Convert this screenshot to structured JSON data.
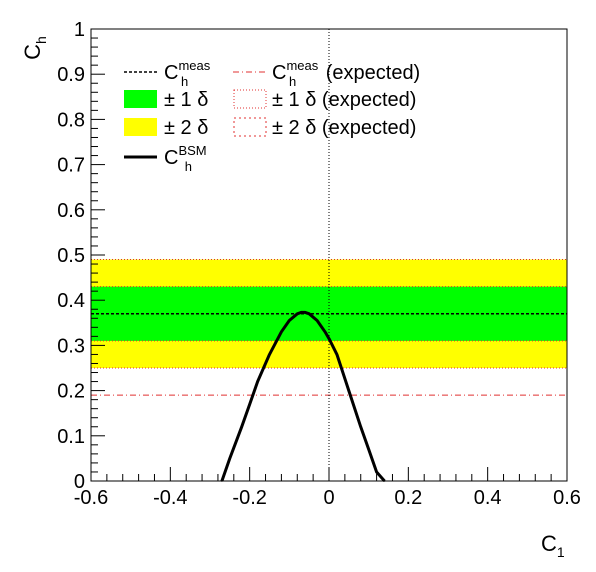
{
  "chart_data": {
    "type": "line",
    "xlabel": {
      "main": "C",
      "sub": "1"
    },
    "ylabel": {
      "main": "C",
      "sub": "h"
    },
    "xlim": [
      -0.6,
      0.6
    ],
    "ylim": [
      0,
      1
    ],
    "xticks": [
      "-0.6",
      "-0.4",
      "-0.2",
      "0",
      "0.2",
      "0.4",
      "0.6"
    ],
    "yticks": [
      "0",
      "0.1",
      "0.2",
      "0.3",
      "0.4",
      "0.5",
      "0.6",
      "0.7",
      "0.8",
      "0.9",
      "1"
    ],
    "measured": {
      "value": 0.37,
      "band1": [
        0.31,
        0.43
      ],
      "band2": [
        0.25,
        0.49
      ]
    },
    "expected": {
      "value": 0.19
    },
    "reference_x": 0,
    "colors": {
      "band1": "#00ff00",
      "band2": "#ffff00",
      "expected": "#e03030",
      "curve": "#000000"
    },
    "series": [
      {
        "name": "C_h^BSM",
        "x": [
          -0.27,
          -0.25,
          -0.22,
          -0.2,
          -0.18,
          -0.15,
          -0.12,
          -0.1,
          -0.08,
          -0.07,
          -0.06,
          -0.05,
          -0.03,
          -0.01,
          0.0,
          0.02,
          0.05,
          0.08,
          0.1,
          0.12,
          0.14
        ],
        "y": [
          0.0,
          0.05,
          0.12,
          0.17,
          0.22,
          0.28,
          0.33,
          0.355,
          0.37,
          0.373,
          0.373,
          0.37,
          0.355,
          0.33,
          0.315,
          0.28,
          0.2,
          0.12,
          0.07,
          0.02,
          0.0
        ]
      }
    ],
    "legend": {
      "placement": "top-left",
      "items": [
        {
          "key": "meas",
          "main": "C",
          "sup": "meas",
          "sub": "h",
          "suffix": ""
        },
        {
          "key": "band1",
          "main": "± 1 δ",
          "sup": "",
          "sub": "",
          "suffix": ""
        },
        {
          "key": "band2",
          "main": "± 2 δ",
          "sup": "",
          "sub": "",
          "suffix": ""
        },
        {
          "key": "bsm",
          "main": "C",
          "sup": "BSM",
          "sub": "h",
          "suffix": ""
        },
        {
          "key": "exp",
          "main": "C",
          "sup": "meas",
          "sub": "h",
          "suffix": " (expected)"
        },
        {
          "key": "exp1",
          "main": "± 1 δ",
          "sup": "",
          "sub": "",
          "suffix": " (expected)"
        },
        {
          "key": "exp2",
          "main": "± 2 δ",
          "sup": "",
          "sub": "",
          "suffix": " (expected)"
        }
      ]
    }
  }
}
